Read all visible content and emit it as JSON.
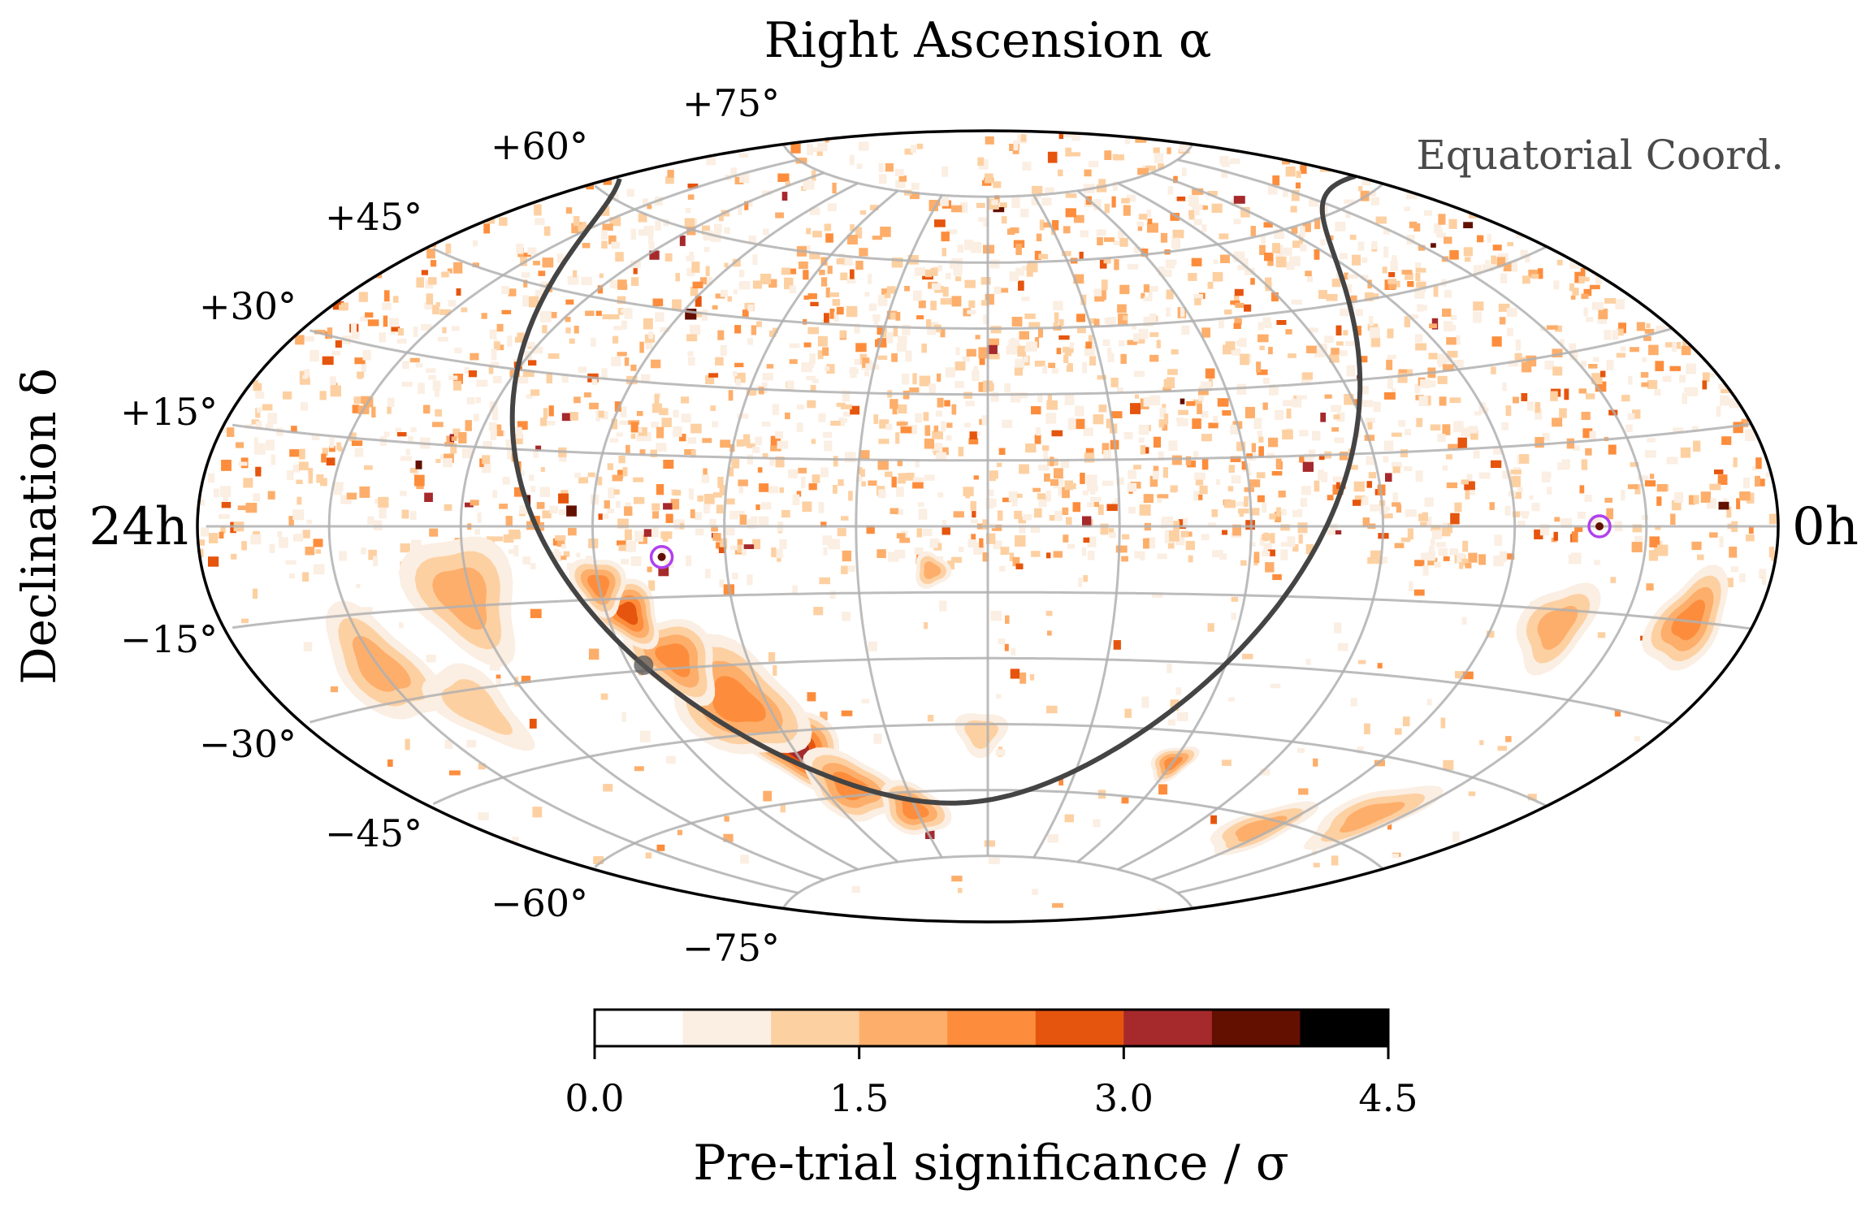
{
  "chart_data": {
    "type": "heatmap",
    "projection": "aitoff",
    "coordinate_system": "equatorial",
    "title": "Right Ascension α",
    "ylabel": "Declination δ",
    "corner_label": "Equatorial Coord.",
    "ra_labels": {
      "left": "24h",
      "right": "0h"
    },
    "dec_ticks": [
      {
        "dec": 75,
        "label": "+75°"
      },
      {
        "dec": 60,
        "label": "+60°"
      },
      {
        "dec": 45,
        "label": "+45°"
      },
      {
        "dec": 30,
        "label": "+30°"
      },
      {
        "dec": 15,
        "label": "+15°"
      },
      {
        "dec": -15,
        "label": "−15°"
      },
      {
        "dec": -30,
        "label": "−30°"
      },
      {
        "dec": -45,
        "label": "−45°"
      },
      {
        "dec": -60,
        "label": "−60°"
      },
      {
        "dec": -75,
        "label": "−75°"
      }
    ],
    "graticule": {
      "ra_step_deg": 30,
      "dec_step_deg": 15,
      "color": "#b0b0b0"
    },
    "colorbar": {
      "label": "Pre-trial significance / σ",
      "range": [
        0.0,
        4.5
      ],
      "ticks": [
        "0.0",
        "1.5",
        "3.0",
        "4.5"
      ],
      "levels": [
        0,
        0.5,
        1.0,
        1.5,
        2.0,
        2.5,
        3.0,
        3.5,
        4.0,
        4.5
      ],
      "colors": [
        "#ffffff",
        "#fbeee2",
        "#fdd0a2",
        "#fdae6b",
        "#fd8d3c",
        "#e6550d",
        "#a6292b",
        "#631000",
        "#000000"
      ]
    },
    "hotspots": [
      {
        "ra": 254.6,
        "dec": -6.5,
        "marker_color": "#b040f0"
      },
      {
        "ra": 40.7,
        "dec": 0.0,
        "marker_color": "#b040f0"
      }
    ],
    "galactic_plane": {
      "color": "#444444",
      "galactic_center": {
        "ra": 266.4,
        "dec": -28.9
      }
    },
    "extended_regions": [
      {
        "ra": 239,
        "dec": -49,
        "peak_sigma": 3.2,
        "radius_deg": 9
      },
      {
        "ra": 248,
        "dec": -38,
        "peak_sigma": 2.3,
        "radius_deg": 13
      },
      {
        "ra": 258,
        "dec": -28,
        "peak_sigma": 2.4,
        "radius_deg": 9
      },
      {
        "ra": 265,
        "dec": -18,
        "peak_sigma": 2.8,
        "radius_deg": 7
      },
      {
        "ra": 270,
        "dec": -12,
        "peak_sigma": 2.2,
        "radius_deg": 6
      },
      {
        "ra": 230,
        "dec": -58,
        "peak_sigma": 2.1,
        "radius_deg": 8
      },
      {
        "ra": 302,
        "dec": -13,
        "peak_sigma": 1.9,
        "radius_deg": 12
      },
      {
        "ra": 330,
        "dec": -24,
        "peak_sigma": 1.8,
        "radius_deg": 10
      },
      {
        "ra": 315,
        "dec": -33,
        "peak_sigma": 1.4,
        "radius_deg": 8
      },
      {
        "ra": 211,
        "dec": -64,
        "peak_sigma": 2.2,
        "radius_deg": 6
      },
      {
        "ra": 15,
        "dec": -15,
        "peak_sigma": 2.3,
        "radius_deg": 8
      },
      {
        "ra": 45,
        "dec": -18,
        "peak_sigma": 1.8,
        "radius_deg": 8
      },
      {
        "ra": 65,
        "dec": -62,
        "peak_sigma": 1.7,
        "radius_deg": 6
      },
      {
        "ra": 120,
        "dec": -52,
        "peak_sigma": 2.3,
        "radius_deg": 4
      },
      {
        "ra": 39,
        "dec": -55,
        "peak_sigma": 1.8,
        "radius_deg": 7
      },
      {
        "ra": 182,
        "dec": -47,
        "peak_sigma": 1.2,
        "radius_deg": 5
      },
      {
        "ra": 193,
        "dec": -10,
        "peak_sigma": 1.6,
        "radius_deg": 4
      }
    ]
  }
}
